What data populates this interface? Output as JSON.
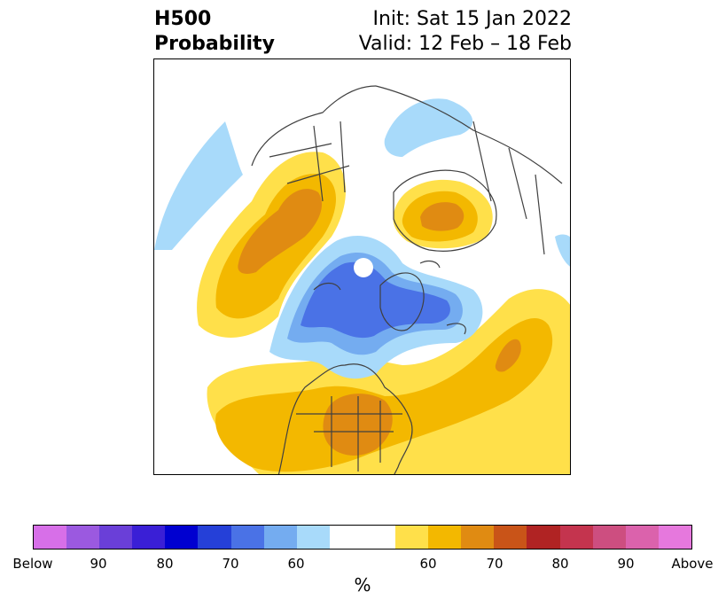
{
  "title": {
    "left_line1": "H500",
    "left_line2": "Probability",
    "right_line1": "Init: Sat 15 Jan 2022",
    "right_line2": "Valid: 12 Feb – 18 Feb"
  },
  "map": {
    "projection": "north-polar stereographic",
    "region": "Northern Hemisphere",
    "background": "#ffffff",
    "coastline_color": "#404040"
  },
  "colorbar": {
    "colors": [
      "#d76fe8",
      "#9b59e0",
      "#6a3fd8",
      "#3a1fd6",
      "#0000d0",
      "#2540d8",
      "#4a72e6",
      "#74acf0",
      "#a8dafa",
      "#ffffff",
      "#ffffff",
      "#ffe04a",
      "#f3b800",
      "#e08b12",
      "#c95418",
      "#b02323",
      "#c4344e",
      "#cd4e80",
      "#db62ac",
      "#e678dd"
    ],
    "labels": [
      "Below",
      "90",
      "80",
      "70",
      "60",
      "60",
      "70",
      "80",
      "90",
      "Above"
    ],
    "unit": "%"
  }
}
